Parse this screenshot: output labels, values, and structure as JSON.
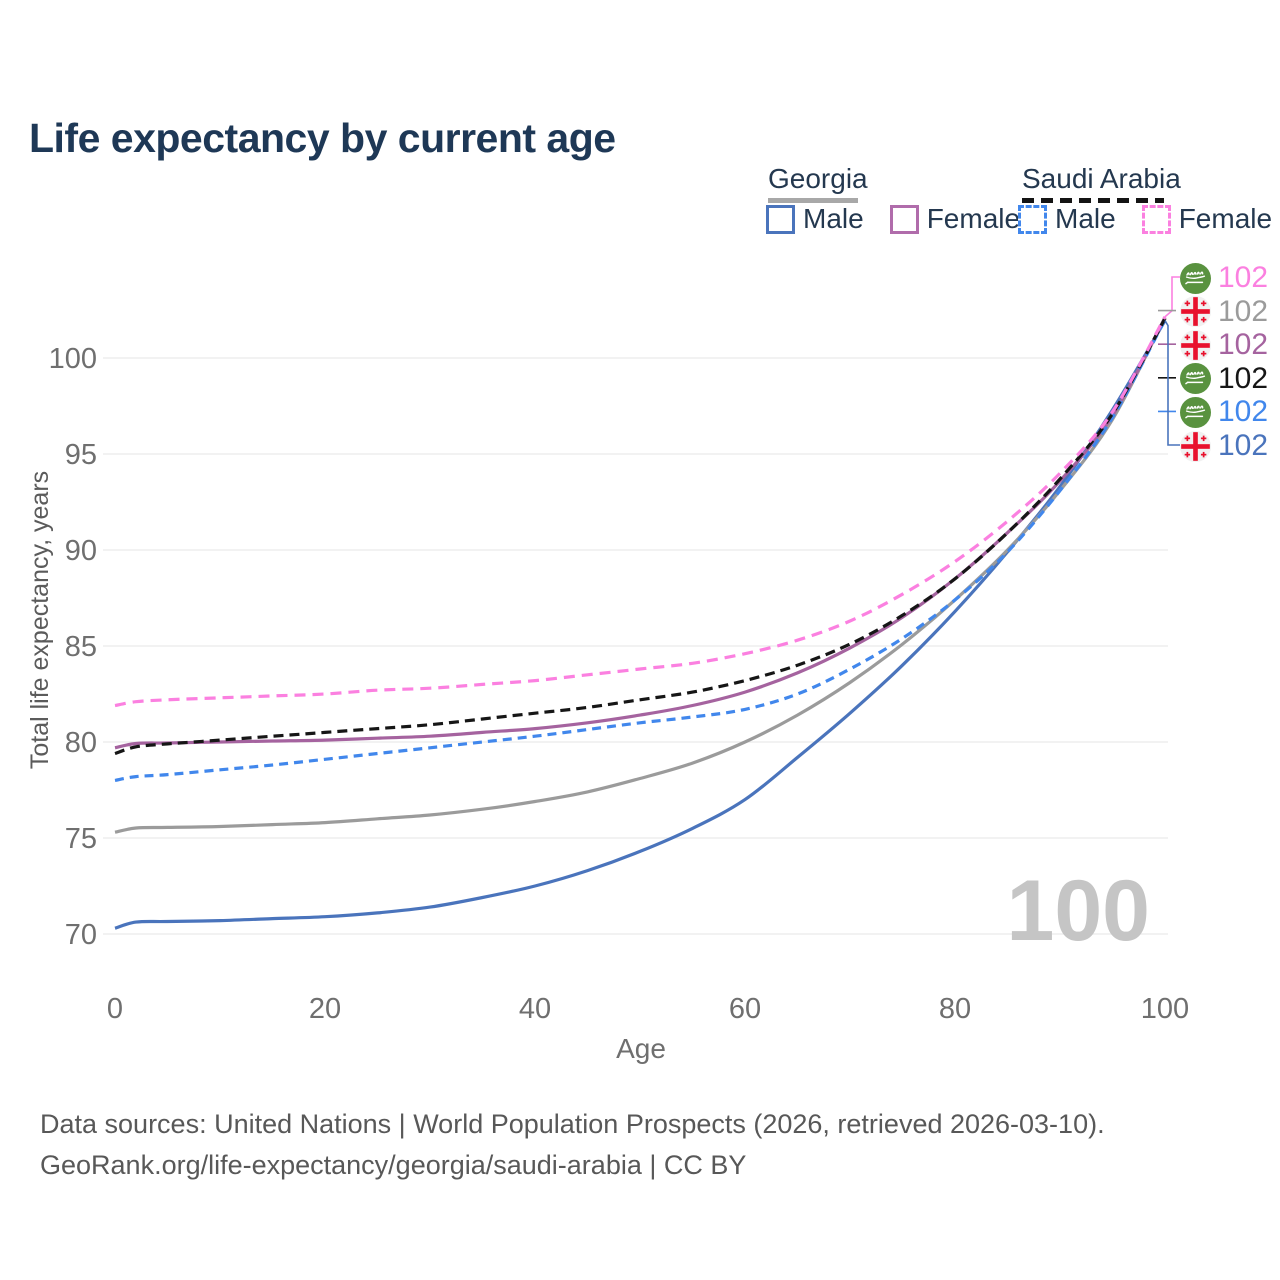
{
  "title": "Life expectancy by current age",
  "watermark": "100",
  "legend": {
    "groups": [
      {
        "country": "Georgia",
        "line_style": "solid",
        "header_line_color": "#a8a8a8",
        "items": [
          {
            "label": "Male",
            "color": "#4a74bc"
          },
          {
            "label": "Female",
            "color": "#b06cab"
          }
        ]
      },
      {
        "country": "Saudi Arabia",
        "line_style": "dashed",
        "header_line_color": "#141414",
        "items": [
          {
            "label": "Male",
            "color": "#4187ec"
          },
          {
            "label": "Female",
            "color": "#fb80e0"
          }
        ]
      }
    ]
  },
  "chart_data": {
    "type": "line",
    "title": "Life expectancy by current age",
    "xlabel": "Age",
    "ylabel": "Total life expectancy, years",
    "xlim": [
      0,
      100
    ],
    "ylim": [
      69.5,
      103.5
    ],
    "x_ticks": [
      0,
      20,
      40,
      60,
      80,
      100
    ],
    "y_ticks": [
      70,
      75,
      80,
      85,
      90,
      95,
      100
    ],
    "grid": "horizontal-only",
    "legend_position": "top-right",
    "x": [
      0,
      2,
      5,
      10,
      15,
      20,
      25,
      30,
      35,
      40,
      45,
      50,
      55,
      60,
      65,
      70,
      75,
      80,
      85,
      90,
      95,
      100
    ],
    "series": [
      {
        "name": "Georgia Male",
        "country": "Georgia",
        "sex": "male",
        "color": "#4a74bc",
        "dash": null,
        "values": [
          70.3,
          70.62,
          70.65,
          70.7,
          70.8,
          70.9,
          71.1,
          71.4,
          71.9,
          72.5,
          73.3,
          74.3,
          75.5,
          77.0,
          79.2,
          81.5,
          84.0,
          86.8,
          89.9,
          93.3,
          97.3,
          101.95
        ]
      },
      {
        "name": "Georgia Total",
        "country": "Georgia",
        "sex": "both",
        "color": "#9b9b9b",
        "dash": null,
        "values": [
          75.3,
          75.52,
          75.55,
          75.6,
          75.7,
          75.8,
          76.0,
          76.2,
          76.5,
          76.9,
          77.4,
          78.1,
          78.9,
          80.0,
          81.4,
          83.1,
          85.1,
          87.4,
          90.0,
          93.1,
          96.8,
          102.12
        ]
      },
      {
        "name": "Georgia Female",
        "country": "Georgia",
        "sex": "female",
        "color": "#a5639f",
        "dash": null,
        "values": [
          79.7,
          79.92,
          79.95,
          80.0,
          80.05,
          80.1,
          80.2,
          80.3,
          80.5,
          80.7,
          81.0,
          81.4,
          81.9,
          82.6,
          83.6,
          84.9,
          86.5,
          88.5,
          90.9,
          93.6,
          97.0,
          102.09
        ]
      },
      {
        "name": "Saudi Arabia Male",
        "country": "Saudi Arabia",
        "sex": "male",
        "color": "#4187ec",
        "dash": [
          9,
          6
        ],
        "values": [
          78.0,
          78.2,
          78.3,
          78.55,
          78.8,
          79.1,
          79.4,
          79.7,
          80.0,
          80.3,
          80.65,
          81.0,
          81.3,
          81.7,
          82.5,
          83.8,
          85.4,
          87.4,
          89.9,
          93.1,
          96.9,
          102.0
        ]
      },
      {
        "name": "Saudi Arabia Total",
        "country": "Saudi Arabia",
        "sex": "both",
        "color": "#161616",
        "dash": [
          10,
          6
        ],
        "values": [
          79.4,
          79.75,
          79.9,
          80.1,
          80.3,
          80.5,
          80.7,
          80.9,
          81.2,
          81.5,
          81.8,
          82.2,
          82.6,
          83.2,
          84.0,
          85.1,
          86.6,
          88.5,
          90.9,
          93.7,
          97.1,
          102.06
        ]
      },
      {
        "name": "Saudi Arabia Female",
        "country": "Saudi Arabia",
        "sex": "female",
        "color": "#fb80e0",
        "dash": [
          11,
          7
        ],
        "values": [
          81.9,
          82.1,
          82.2,
          82.3,
          82.4,
          82.5,
          82.7,
          82.8,
          83.0,
          83.2,
          83.5,
          83.8,
          84.1,
          84.6,
          85.3,
          86.3,
          87.7,
          89.4,
          91.5,
          94.0,
          97.2,
          102.15
        ]
      }
    ],
    "end_labels": [
      {
        "text": "102",
        "series": "Saudi Arabia Female",
        "flag": "saudi-arabia",
        "color": "#fb80e0"
      },
      {
        "text": "102",
        "series": "Georgia Total",
        "flag": "georgia",
        "color": "#9b9b9b"
      },
      {
        "text": "102",
        "series": "Georgia Female",
        "flag": "georgia",
        "color": "#a5639f"
      },
      {
        "text": "102",
        "series": "Saudi Arabia Total",
        "flag": "saudi-arabia",
        "color": "#161616"
      },
      {
        "text": "102",
        "series": "Saudi Arabia Male",
        "flag": "saudi-arabia",
        "color": "#4187ec"
      },
      {
        "text": "102",
        "series": "Georgia Male",
        "flag": "georgia",
        "color": "#4a74bc"
      }
    ]
  },
  "footer": {
    "line1": "Data sources: United Nations | World Population Prospects (2026, retrieved 2026-03-10).",
    "line2": "GeoRank.org/life-expectancy/georgia/saudi-arabia | CC BY"
  }
}
